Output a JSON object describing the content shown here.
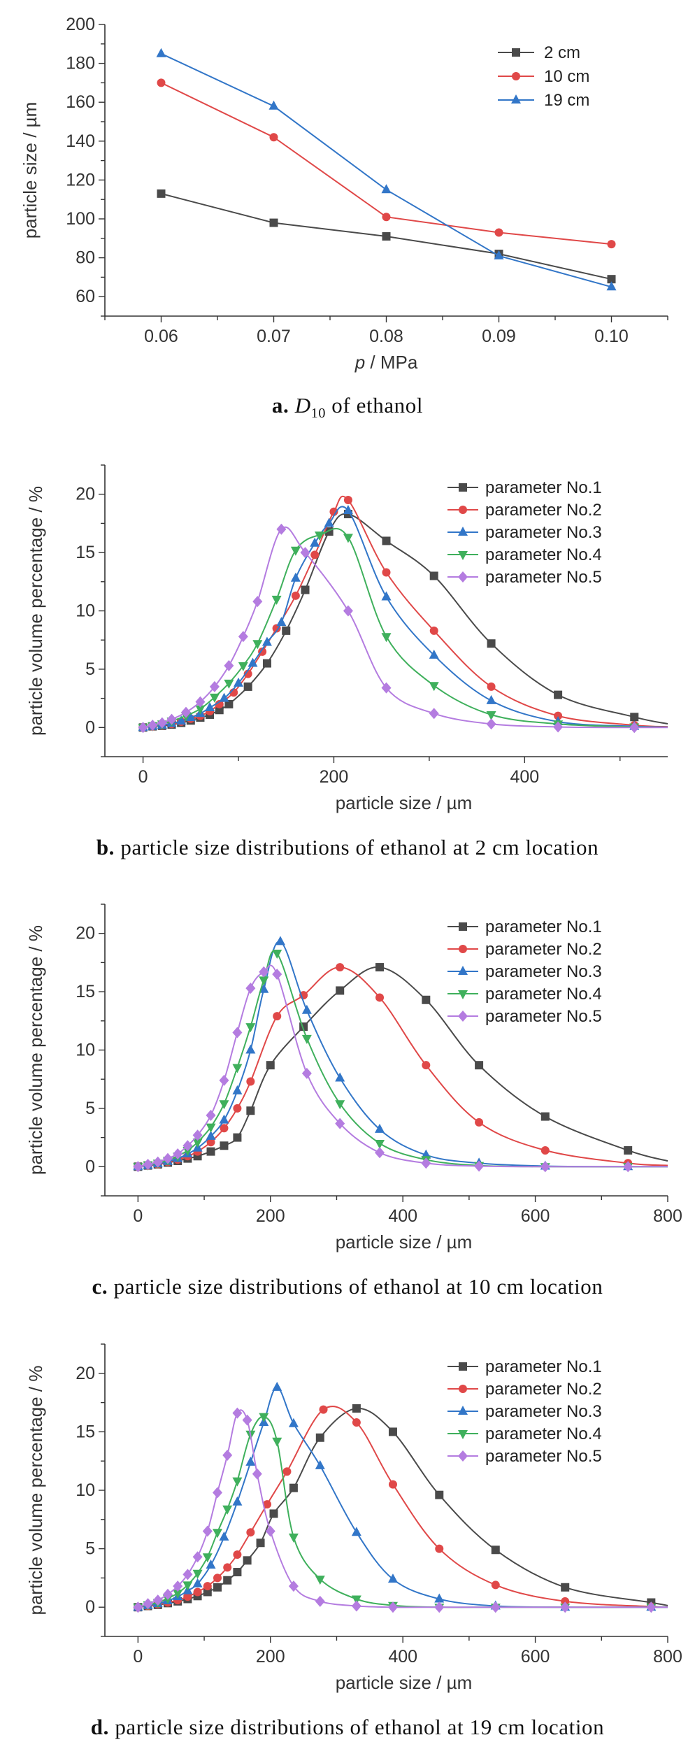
{
  "chart_data": [
    {
      "id": "a",
      "type": "line",
      "caption": {
        "letter": "a.",
        "symbol": "D",
        "subscript": "10",
        "text": "of ethanol"
      },
      "xlabel_italic": "p",
      "xlabel": "/ MPa",
      "ylabel": "particle size / µm",
      "xlim": [
        0.055,
        0.105
      ],
      "ylim": [
        50,
        200
      ],
      "xticks": [
        "0.06",
        "0.07",
        "0.08",
        "0.09",
        "0.10"
      ],
      "yticks": [
        "60",
        "80",
        "100",
        "120",
        "140",
        "160",
        "180",
        "200"
      ],
      "x": [
        0.06,
        0.07,
        0.08,
        0.09,
        0.1
      ],
      "legend_position": "top-right",
      "series": [
        {
          "name": "2 cm",
          "color": "#4a4a4a",
          "marker": "square",
          "values": [
            113,
            98,
            91,
            82,
            69
          ]
        },
        {
          "name": "10 cm",
          "color": "#e04848",
          "marker": "circle",
          "values": [
            170,
            142,
            101,
            93,
            87
          ]
        },
        {
          "name": "19 cm",
          "color": "#3276c8",
          "marker": "triangle-up",
          "values": [
            185,
            158,
            115,
            81,
            65
          ]
        }
      ]
    },
    {
      "id": "b",
      "type": "line",
      "caption": {
        "letter": "b.",
        "text": "particle size distributions of ethanol at 2 cm location"
      },
      "xlabel": "particle size / µm",
      "ylabel": "particle volume percentage / %",
      "xlim": [
        -40,
        550
      ],
      "ylim": [
        -2.5,
        22.5
      ],
      "xticks": [
        "0",
        "200",
        "400"
      ],
      "yticks": [
        "0",
        "5",
        "10",
        "15",
        "20"
      ],
      "legend_position": "top-right",
      "series": [
        {
          "name": "parameter No.1",
          "color": "#4a4a4a",
          "marker": "square",
          "x": [
            0,
            10,
            20,
            30,
            40,
            50,
            60,
            70,
            80,
            90,
            110,
            130,
            150,
            170,
            195,
            215,
            255,
            305,
            365,
            435,
            515
          ],
          "y": [
            0,
            0.1,
            0.15,
            0.25,
            0.4,
            0.6,
            0.85,
            1.1,
            1.5,
            2.0,
            3.5,
            5.5,
            8.3,
            11.8,
            16.8,
            18.3,
            16.0,
            13.0,
            7.2,
            2.8,
            0.9
          ]
        },
        {
          "name": "parameter No.2",
          "color": "#e04848",
          "marker": "circle",
          "x": [
            0,
            10,
            20,
            30,
            40,
            50,
            60,
            70,
            80,
            95,
            110,
            125,
            140,
            160,
            180,
            200,
            215,
            255,
            305,
            365,
            435,
            515
          ],
          "y": [
            0,
            0.1,
            0.2,
            0.3,
            0.5,
            0.75,
            1.0,
            1.4,
            2.0,
            3.0,
            4.6,
            6.5,
            8.5,
            11.3,
            14.8,
            18.5,
            19.5,
            13.3,
            8.3,
            3.5,
            1.0,
            0.2
          ]
        },
        {
          "name": "parameter No.3",
          "color": "#3276c8",
          "marker": "triangle-up",
          "x": [
            0,
            10,
            20,
            30,
            40,
            50,
            60,
            70,
            85,
            100,
            115,
            130,
            145,
            160,
            180,
            195,
            215,
            255,
            305,
            365,
            435,
            515
          ],
          "y": [
            0,
            0.1,
            0.2,
            0.35,
            0.55,
            0.85,
            1.2,
            1.7,
            2.5,
            3.8,
            5.5,
            7.3,
            9.0,
            12.8,
            15.8,
            17.5,
            18.6,
            11.2,
            6.2,
            2.3,
            0.5,
            0.1
          ]
        },
        {
          "name": "parameter No.4",
          "color": "#3fb05c",
          "marker": "triangle-down",
          "x": [
            0,
            10,
            20,
            30,
            45,
            60,
            75,
            90,
            105,
            120,
            140,
            160,
            185,
            215,
            255,
            305,
            365,
            435,
            515
          ],
          "y": [
            0,
            0.15,
            0.3,
            0.55,
            1.0,
            1.6,
            2.6,
            3.8,
            5.3,
            7.2,
            11.0,
            15.2,
            16.5,
            16.3,
            7.8,
            3.6,
            1.1,
            0.3,
            0.05
          ]
        },
        {
          "name": "parameter No.5",
          "color": "#b47ce0",
          "marker": "diamond",
          "x": [
            0,
            10,
            20,
            30,
            45,
            60,
            75,
            90,
            105,
            120,
            145,
            170,
            215,
            255,
            305,
            365,
            435,
            515
          ],
          "y": [
            0,
            0.2,
            0.4,
            0.7,
            1.3,
            2.2,
            3.5,
            5.3,
            7.8,
            10.8,
            17.0,
            15.0,
            10.0,
            3.4,
            1.2,
            0.3,
            0.05,
            0
          ]
        }
      ]
    },
    {
      "id": "c",
      "type": "line",
      "caption": {
        "letter": "c.",
        "text": "particle size distributions of ethanol at 10 cm location"
      },
      "xlabel": "particle size / µm",
      "ylabel": "particle volume percentage / %",
      "xlim": [
        -50,
        800
      ],
      "ylim": [
        -2.5,
        22.5
      ],
      "xticks": [
        "0",
        "200",
        "400",
        "600",
        "800"
      ],
      "yticks": [
        "0",
        "5",
        "10",
        "15",
        "20"
      ],
      "legend_position": "top-right",
      "series": [
        {
          "name": "parameter No.1",
          "color": "#4a4a4a",
          "marker": "square",
          "x": [
            0,
            15,
            30,
            45,
            60,
            75,
            90,
            110,
            130,
            150,
            170,
            200,
            250,
            305,
            365,
            435,
            515,
            615,
            740
          ],
          "y": [
            0,
            0.1,
            0.2,
            0.35,
            0.5,
            0.7,
            0.9,
            1.3,
            1.8,
            2.5,
            4.8,
            8.7,
            12.0,
            15.1,
            17.1,
            14.3,
            8.7,
            4.3,
            1.4
          ]
        },
        {
          "name": "parameter No.2",
          "color": "#e04848",
          "marker": "circle",
          "x": [
            0,
            15,
            30,
            45,
            60,
            75,
            90,
            110,
            130,
            150,
            170,
            210,
            250,
            305,
            365,
            435,
            515,
            615,
            740
          ],
          "y": [
            0,
            0.1,
            0.2,
            0.4,
            0.6,
            0.9,
            1.3,
            2.1,
            3.3,
            5.0,
            7.3,
            12.9,
            14.7,
            17.1,
            14.5,
            8.7,
            3.8,
            1.4,
            0.3
          ]
        },
        {
          "name": "parameter No.3",
          "color": "#3276c8",
          "marker": "triangle-up",
          "x": [
            0,
            15,
            30,
            45,
            60,
            75,
            90,
            110,
            130,
            150,
            170,
            190,
            215,
            255,
            305,
            365,
            435,
            515,
            615,
            740
          ],
          "y": [
            0,
            0.1,
            0.25,
            0.45,
            0.7,
            1.1,
            1.6,
            2.6,
            4.0,
            6.5,
            10.0,
            15.2,
            19.3,
            13.4,
            7.6,
            3.2,
            1.0,
            0.3,
            0.05,
            0
          ]
        },
        {
          "name": "parameter No.4",
          "color": "#3fb05c",
          "marker": "triangle-down",
          "x": [
            0,
            15,
            30,
            45,
            60,
            75,
            90,
            110,
            130,
            150,
            170,
            190,
            210,
            255,
            305,
            365,
            435,
            515,
            615,
            740
          ],
          "y": [
            0,
            0.15,
            0.3,
            0.55,
            0.9,
            1.4,
            2.1,
            3.4,
            5.4,
            8.5,
            12.0,
            16.0,
            18.3,
            11.0,
            5.4,
            2.0,
            0.6,
            0.1,
            0,
            0
          ]
        },
        {
          "name": "parameter No.5",
          "color": "#b47ce0",
          "marker": "diamond",
          "x": [
            0,
            15,
            30,
            45,
            60,
            75,
            90,
            110,
            130,
            150,
            170,
            190,
            210,
            255,
            305,
            365,
            435,
            515,
            615,
            740
          ],
          "y": [
            0,
            0.2,
            0.4,
            0.7,
            1.1,
            1.8,
            2.7,
            4.4,
            7.4,
            11.5,
            15.3,
            16.7,
            16.5,
            8.0,
            3.7,
            1.2,
            0.3,
            0.05,
            0,
            0
          ]
        }
      ]
    },
    {
      "id": "d",
      "type": "line",
      "caption": {
        "letter": "d.",
        "text": "particle size distributions of ethanol at 19 cm location"
      },
      "xlabel": "particle size / µm",
      "ylabel": "particle volume percentage / %",
      "xlim": [
        -50,
        800
      ],
      "ylim": [
        -2.5,
        22.5
      ],
      "xticks": [
        "0",
        "200",
        "400",
        "600",
        "800"
      ],
      "yticks": [
        "0",
        "5",
        "10",
        "15",
        "20"
      ],
      "legend_position": "top-right",
      "series": [
        {
          "name": "parameter No.1",
          "color": "#4a4a4a",
          "marker": "square",
          "x": [
            0,
            15,
            30,
            45,
            60,
            75,
            90,
            105,
            120,
            135,
            150,
            165,
            185,
            205,
            235,
            275,
            330,
            385,
            455,
            540,
            645,
            775
          ],
          "y": [
            0,
            0.1,
            0.2,
            0.35,
            0.5,
            0.7,
            0.95,
            1.3,
            1.7,
            2.3,
            3.0,
            4.0,
            5.5,
            8.0,
            10.2,
            14.5,
            17.0,
            15.0,
            9.6,
            4.9,
            1.7,
            0.4
          ]
        },
        {
          "name": "parameter No.2",
          "color": "#e04848",
          "marker": "circle",
          "x": [
            0,
            15,
            30,
            45,
            60,
            75,
            90,
            105,
            120,
            135,
            150,
            170,
            195,
            225,
            280,
            330,
            385,
            455,
            540,
            645,
            775
          ],
          "y": [
            0,
            0.1,
            0.25,
            0.4,
            0.6,
            0.9,
            1.3,
            1.8,
            2.5,
            3.4,
            4.5,
            6.4,
            8.8,
            11.6,
            16.9,
            15.8,
            10.5,
            5.0,
            1.9,
            0.5,
            0.05
          ]
        },
        {
          "name": "parameter No.3",
          "color": "#3276c8",
          "marker": "triangle-up",
          "x": [
            0,
            15,
            30,
            45,
            60,
            75,
            90,
            110,
            130,
            150,
            170,
            190,
            210,
            235,
            275,
            330,
            385,
            455,
            540,
            645,
            775
          ],
          "y": [
            0,
            0.15,
            0.3,
            0.55,
            0.9,
            1.4,
            2.0,
            3.6,
            6.0,
            9.0,
            12.4,
            15.8,
            18.8,
            15.7,
            12.1,
            6.4,
            2.4,
            0.7,
            0.1,
            0,
            0
          ]
        },
        {
          "name": "parameter No.4",
          "color": "#3fb05c",
          "marker": "triangle-down",
          "x": [
            0,
            15,
            30,
            45,
            60,
            75,
            90,
            105,
            120,
            135,
            150,
            170,
            190,
            210,
            235,
            275,
            330,
            385,
            455,
            540,
            645,
            775
          ],
          "y": [
            0,
            0.2,
            0.4,
            0.75,
            1.2,
            1.9,
            2.9,
            4.3,
            6.4,
            8.4,
            10.8,
            14.8,
            16.3,
            14.2,
            6.0,
            2.4,
            0.7,
            0.15,
            0,
            0,
            0,
            0
          ]
        },
        {
          "name": "parameter No.5",
          "color": "#b47ce0",
          "marker": "diamond",
          "x": [
            0,
            15,
            30,
            45,
            60,
            75,
            90,
            105,
            120,
            135,
            150,
            165,
            180,
            200,
            235,
            275,
            330,
            385,
            455,
            540,
            645,
            775
          ],
          "y": [
            0,
            0.3,
            0.6,
            1.1,
            1.8,
            2.8,
            4.3,
            6.5,
            9.8,
            13.0,
            16.6,
            16.0,
            11.4,
            6.5,
            1.8,
            0.5,
            0.1,
            0,
            0,
            0,
            0,
            0
          ]
        }
      ]
    }
  ]
}
